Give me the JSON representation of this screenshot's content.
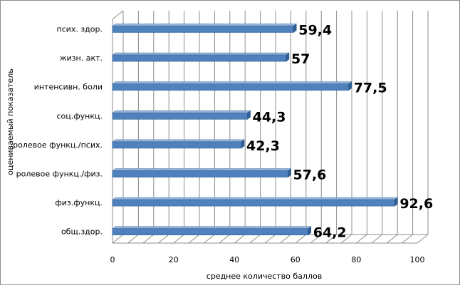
{
  "chart_data": {
    "type": "bar",
    "orientation": "horizontal",
    "style": "3d",
    "categories": [
      "псих. здор.",
      "жизн. акт.",
      "интенсивн. боли",
      "соц.функц.",
      "ролевое функц./псих.",
      "ролевое функц./физ.",
      "физ.функц.",
      "общ.здор."
    ],
    "values": [
      59.4,
      57,
      77.5,
      44.3,
      42.3,
      57.6,
      92.6,
      64.2
    ],
    "value_labels": [
      "59,4",
      "57",
      "77,5",
      "44,3",
      "42,3",
      "57,6",
      "92,6",
      "64,2"
    ],
    "xlim": [
      0,
      100
    ],
    "x_ticks": [
      0,
      20,
      40,
      60,
      80,
      100
    ],
    "minor_gridline_step": 5,
    "xlabel": "среднее количество баллов",
    "ylabel": "оцениваемый показатель",
    "bar_color": "#4f81bd",
    "bar_top_color": "#95b3d7",
    "bar_side_color": "#2f5f96",
    "grid": true,
    "legend": "none"
  }
}
